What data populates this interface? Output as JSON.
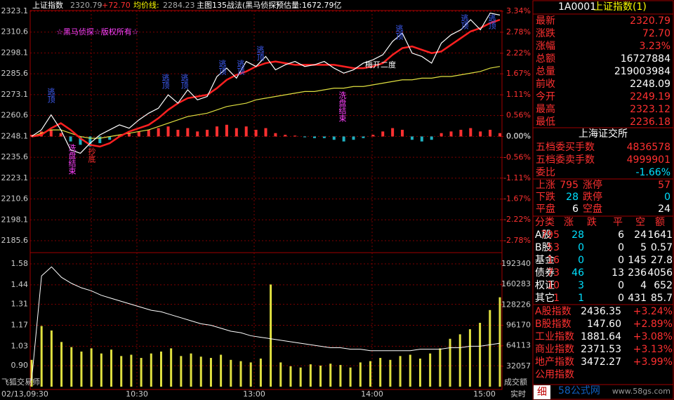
{
  "header": {
    "name": "上证指数",
    "price": "2320.79",
    "change": "+72.70",
    "avg_label": "均价线:",
    "avg": "2284.23",
    "indicator": "主图135战法(黑马侦探)",
    "forecast_label": "预估量:",
    "forecast": "1672.79亿"
  },
  "price_chart": {
    "ylim": [
      2185.6,
      2323.1
    ],
    "yticks": [
      2323.1,
      2310.6,
      2298.1,
      2285.6,
      2273.1,
      2260.6,
      2248.1,
      2235.6,
      2223.1,
      2210.6,
      2198.1,
      2185.6
    ],
    "y2lim": [
      -2.78,
      3.34
    ],
    "y2ticks": [
      {
        "value": 3.34,
        "label": "3.34%"
      },
      {
        "value": 2.78,
        "label": "2.78%"
      },
      {
        "value": 2.22,
        "label": "2.22%"
      },
      {
        "value": 1.67,
        "label": "1.67%"
      },
      {
        "value": 1.11,
        "label": "1.11%"
      },
      {
        "value": 0.56,
        "label": "0.56%"
      },
      {
        "value": 0,
        "label": "0.00%"
      },
      {
        "value": -0.56,
        "label": "-0.56%"
      },
      {
        "value": -1.11,
        "label": "-1.11%"
      },
      {
        "value": -1.67,
        "label": "-1.67%"
      },
      {
        "value": -2.22,
        "label": "-2.22%"
      },
      {
        "value": -2.78,
        "label": "-2.78%"
      }
    ],
    "price": [
      2248.1,
      2252,
      2261,
      2252,
      2240,
      2238,
      2244,
      2249,
      2252,
      2255,
      2253,
      2258,
      2262,
      2265,
      2273,
      2268,
      2276,
      2270,
      2272,
      2284,
      2289,
      2283,
      2293,
      2290,
      2296,
      2288,
      2291,
      2293,
      2290,
      2291,
      2293,
      2289,
      2286,
      2288,
      2292,
      2294,
      2297,
      2305,
      2310,
      2298,
      2296,
      2292,
      2304,
      2309,
      2312,
      2318,
      2312,
      2322,
      2320.79
    ],
    "average": [
      2248,
      2250,
      2252,
      2252,
      2250,
      2248,
      2247,
      2247,
      2248,
      2249,
      2250,
      2251,
      2252,
      2254,
      2256,
      2258,
      2260,
      2261,
      2262,
      2264,
      2266,
      2267,
      2268,
      2270,
      2271,
      2272,
      2273,
      2274,
      2275,
      2275,
      2276,
      2277,
      2277,
      2278,
      2278,
      2279,
      2280,
      2281,
      2282,
      2282,
      2283,
      2283,
      2284,
      2284,
      2285,
      2286,
      2287,
      2289,
      2290
    ],
    "ma": [
      2248,
      2249,
      2253,
      2256,
      2252,
      2247,
      2243,
      2242,
      2244,
      2248,
      2251,
      2253,
      2255,
      2259,
      2264,
      2268,
      2271,
      2272,
      2273,
      2277,
      2282,
      2285,
      2287,
      2290,
      2292,
      2293,
      2292,
      2291,
      2291,
      2291,
      2291,
      2291,
      2290,
      2289,
      2289,
      2290,
      2292,
      2297,
      2301,
      2302,
      2300,
      2298,
      2299,
      2303,
      2307,
      2311,
      2313,
      2316,
      2318
    ],
    "macd": [
      1,
      3,
      4,
      2,
      -3,
      -5,
      -6,
      -4,
      -2,
      0.5,
      2,
      3,
      4,
      5,
      6,
      4,
      5,
      3,
      4,
      6,
      7,
      5,
      6,
      4,
      5,
      2,
      1,
      0.5,
      -0.5,
      -1,
      -1,
      -2,
      -3,
      -2,
      -1,
      1,
      3,
      5,
      4,
      -2,
      -3,
      -2,
      2,
      3,
      4,
      5,
      3,
      4,
      2
    ],
    "copyright": "☆黑马侦探☆版权所有☆",
    "annotations": [
      "逃顶",
      "逃顶",
      "逃顶",
      "逃顶",
      "逃顶",
      "逃顶",
      "逃顶",
      "逃顶",
      "逃顶",
      "洗盘结束",
      "洗盘结束",
      "抄底",
      "梅开二度"
    ]
  },
  "volume_chart": {
    "ylim": [
      0.76,
      1.58
    ],
    "yticks": [
      1.58,
      1.44,
      1.31,
      1.17,
      1.03,
      {
        "value": 0.9,
        "label": "0.90"
      }
    ],
    "y2lim": [
      0,
      192340
    ],
    "y2ticks": [
      192340,
      160283,
      128226,
      96170,
      64113,
      32057
    ],
    "ratio": [
      0.8,
      1.5,
      1.56,
      1.49,
      1.45,
      1.42,
      1.4,
      1.37,
      1.35,
      1.33,
      1.31,
      1.29,
      1.27,
      1.26,
      1.24,
      1.22,
      1.2,
      1.18,
      1.17,
      1.15,
      1.13,
      1.12,
      1.1,
      1.09,
      1.08,
      1.07,
      1.06,
      1.05,
      1.04,
      1.03,
      1.02,
      1.02,
      1.01,
      1.01,
      1,
      1,
      1,
      1,
      1,
      1.01,
      1.01,
      1.01,
      1.02,
      1.02,
      1.03,
      1.03,
      1.04,
      1.05
    ],
    "amount": [
      42000,
      95000,
      88000,
      70000,
      62000,
      55000,
      60000,
      52000,
      58000,
      48000,
      50000,
      45000,
      52000,
      55000,
      60000,
      48000,
      52000,
      47000,
      45000,
      50000,
      42000,
      40000,
      38000,
      44000,
      160000,
      38000,
      32000,
      30000,
      35000,
      33000,
      36000,
      34000,
      30000,
      38000,
      40000,
      45000,
      42000,
      48000,
      50000,
      44000,
      52000,
      60000,
      75000,
      82000,
      90000,
      100000,
      120000,
      140000
    ],
    "label": "飞狐交易师",
    "axis_label": "成交额"
  },
  "time_axis": [
    "02/13,09:30",
    "10:30",
    "13:00",
    "14:00",
    "15:00",
    "实时"
  ],
  "quote": {
    "code": "1A0001",
    "name": "上证指数(1)",
    "rows": [
      [
        "最新",
        "2320.79"
      ],
      [
        "涨跌",
        "72.70"
      ],
      [
        "涨幅",
        "3.23%"
      ],
      [
        "总额",
        "16727884"
      ],
      [
        "总量",
        "219003984"
      ],
      [
        "前收",
        "2248.09"
      ],
      [
        "今开",
        "2249.19"
      ],
      [
        "最高",
        "2323.12"
      ],
      [
        "最低",
        "2236.18"
      ]
    ]
  },
  "exchange": {
    "title": "上海证交所",
    "rows": [
      [
        "五档委买手数",
        "4836578"
      ],
      [
        "五档委卖手数",
        "4999901"
      ],
      [
        "委比",
        "-1.66%"
      ]
    ],
    "breadth": [
      [
        "上涨",
        "795",
        "涨停",
        "57"
      ],
      [
        "下跌",
        "28",
        "跌停",
        "0"
      ],
      [
        "平盘",
        "6",
        "空盘",
        "24"
      ]
    ]
  },
  "category_table": {
    "header": [
      "分类",
      "涨",
      "跌",
      "平",
      "空",
      "额"
    ],
    "rows": [
      [
        "A股",
        "795",
        "28",
        "6",
        "24",
        "1641"
      ],
      [
        "B股",
        "53",
        "0",
        "0",
        "5",
        "0.57"
      ],
      [
        "基金",
        "16",
        "0",
        "0",
        "145",
        "27.8"
      ],
      [
        "债券",
        "73",
        "46",
        "13",
        "236",
        "4056"
      ],
      [
        "权证",
        "10",
        "3",
        "0",
        "4",
        "652"
      ],
      [
        "其它",
        "1",
        "1",
        "0",
        "431",
        "85.7"
      ]
    ]
  },
  "indices": [
    [
      "A股指数",
      "2436.35",
      "+3.24%"
    ],
    [
      "B股指数",
      "147.60",
      "+2.89%"
    ],
    [
      "工业指数",
      "1881.64",
      "+3.08%"
    ],
    [
      "商业指数",
      "2371.53",
      "+3.13%"
    ],
    [
      "地产指数",
      "3472.27",
      "+3.99%"
    ],
    [
      "公用指数"
    ]
  ],
  "footer": {
    "tab": "细",
    "watermark": "58公式网",
    "url": "www.58gs.com"
  }
}
